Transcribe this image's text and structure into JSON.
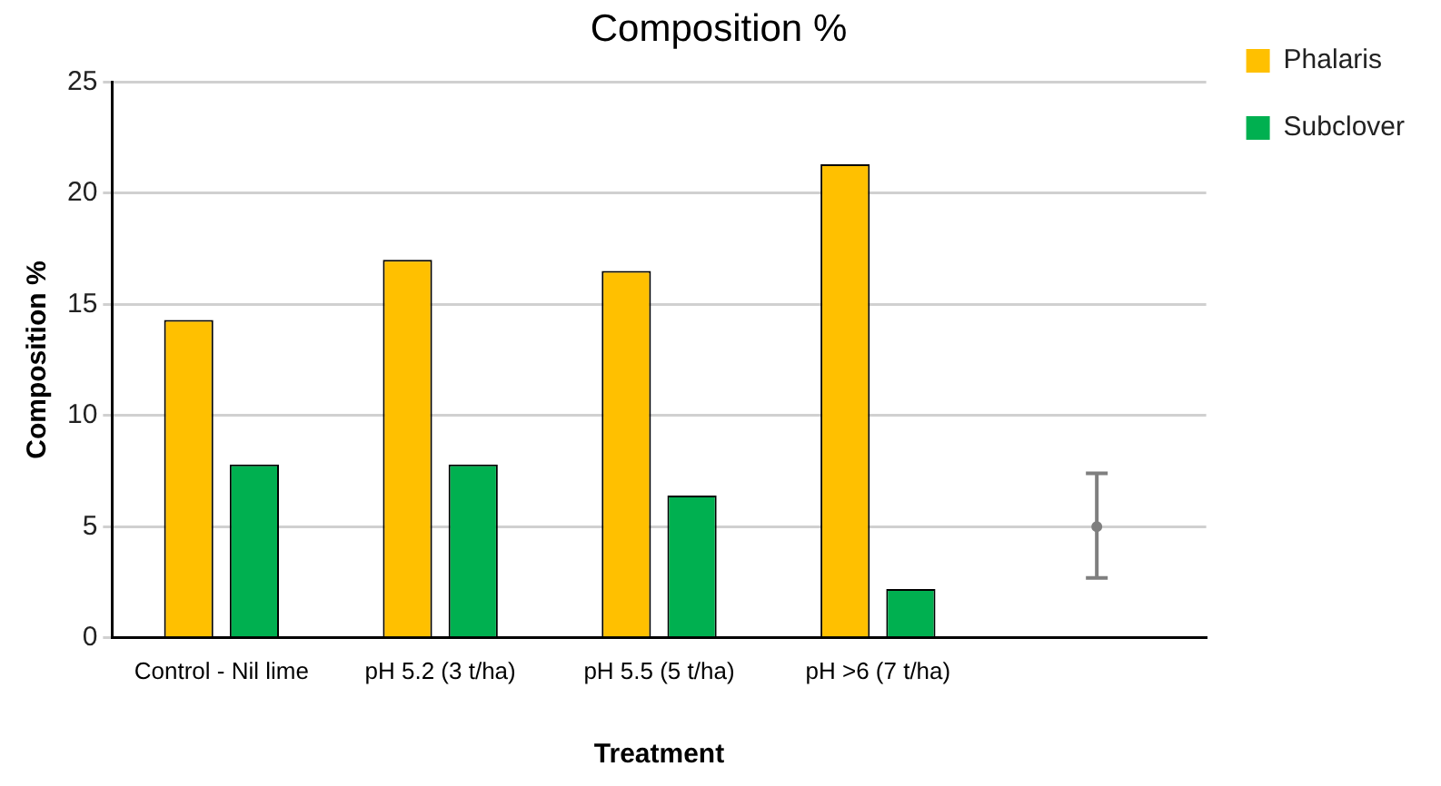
{
  "chart_data": {
    "type": "bar",
    "title": "Composition %",
    "xlabel": "Treatment",
    "ylabel": "Composition %",
    "categories": [
      "Control - Nil lime",
      "pH 5.2 (3 t/ha)",
      "pH 5.5 (5 t/ha)",
      "pH >6 (7 t/ha)",
      null
    ],
    "series": [
      {
        "name": "Phalaris",
        "color": "#ffc000",
        "values": [
          14.3,
          17.0,
          16.5,
          21.3,
          null
        ]
      },
      {
        "name": "Subclover",
        "color": "#00b050",
        "values": [
          7.8,
          7.8,
          6.4,
          2.2,
          null
        ]
      },
      {
        "type": "scatter",
        "color": "#7f7f7f",
        "marker": "circle",
        "values": [
          null,
          null,
          null,
          null,
          5.0
        ],
        "errors": [
          null,
          null,
          null,
          null,
          [
            2.7,
            7.4
          ]
        ]
      }
    ],
    "ylim": [
      0,
      25
    ],
    "yticks": [
      0,
      5,
      10,
      15,
      20,
      25
    ],
    "grid": "y",
    "legend": "top right"
  }
}
